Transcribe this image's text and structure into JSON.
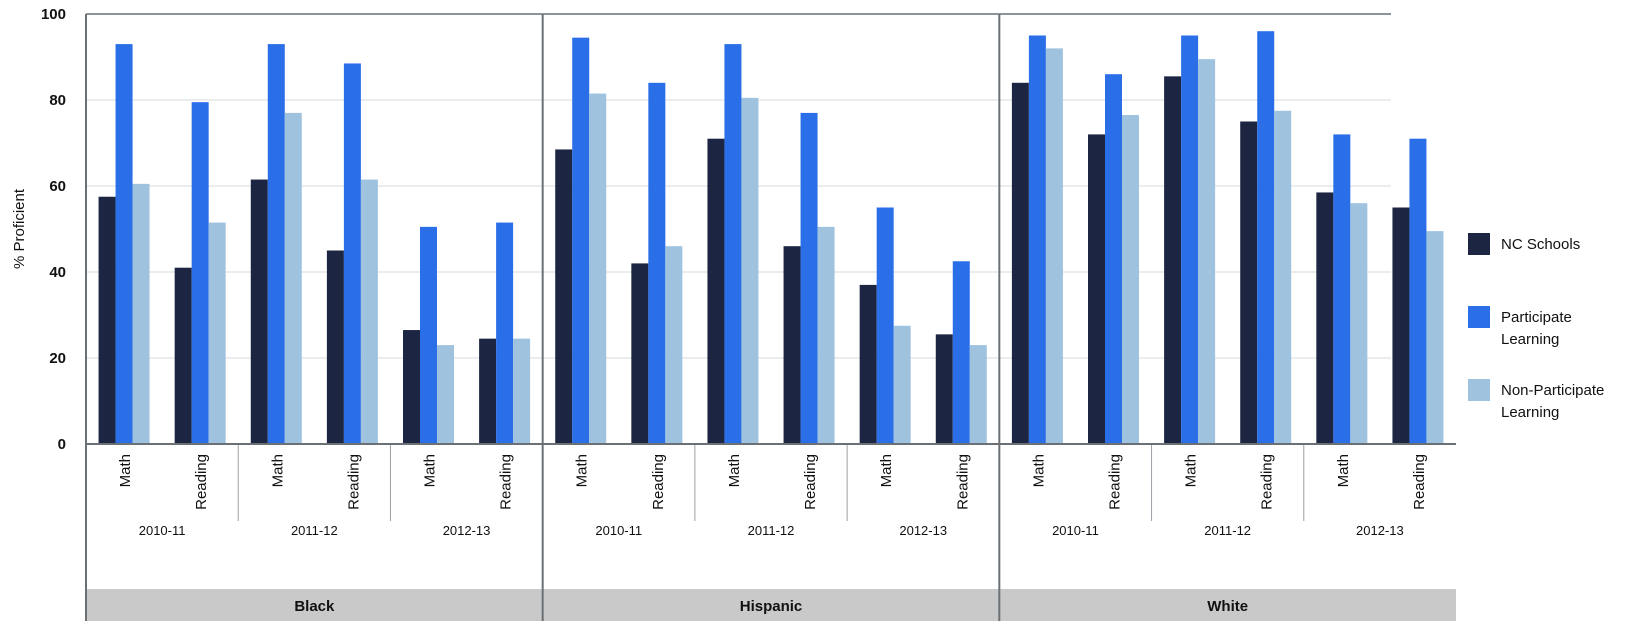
{
  "chart_data": {
    "type": "bar",
    "ylabel": "% Proficient",
    "ylim": [
      0,
      100
    ],
    "yticks": [
      0,
      20,
      40,
      60,
      80,
      100
    ],
    "grid": true,
    "legend_position": "right",
    "colors": {
      "NC Schools": "#1c2541",
      "Participate Learning": "#2a6ee8",
      "Non-Participate Learning": "#9fc2df"
    },
    "series_names": [
      "NC Schools",
      "Participate Learning",
      "Non-Participate Learning"
    ],
    "legend": [
      {
        "lines": [
          "NC Schools"
        ]
      },
      {
        "lines": [
          "Participate",
          "Learning"
        ]
      },
      {
        "lines": [
          "Non-Participate",
          "Learning"
        ]
      }
    ],
    "panels": [
      {
        "name": "Black",
        "years": [
          {
            "year": "2010-11",
            "groups": [
              {
                "subject": "Math",
                "values": [
                  57.5,
                  93,
                  60.5
                ]
              },
              {
                "subject": "Reading",
                "values": [
                  41,
                  79.5,
                  51.5
                ]
              }
            ]
          },
          {
            "year": "2011-12",
            "groups": [
              {
                "subject": "Math",
                "values": [
                  61.5,
                  93,
                  77
                ]
              },
              {
                "subject": "Reading",
                "values": [
                  45,
                  88.5,
                  61.5
                ]
              }
            ]
          },
          {
            "year": "2012-13",
            "groups": [
              {
                "subject": "Math",
                "values": [
                  26.5,
                  50.5,
                  23
                ]
              },
              {
                "subject": "Reading",
                "values": [
                  24.5,
                  51.5,
                  24.5
                ]
              }
            ]
          }
        ]
      },
      {
        "name": "Hispanic",
        "years": [
          {
            "year": "2010-11",
            "groups": [
              {
                "subject": "Math",
                "values": [
                  68.5,
                  94.5,
                  81.5
                ]
              },
              {
                "subject": "Reading",
                "values": [
                  42,
                  84,
                  46
                ]
              }
            ]
          },
          {
            "year": "2011-12",
            "groups": [
              {
                "subject": "Math",
                "values": [
                  71,
                  93,
                  80.5
                ]
              },
              {
                "subject": "Reading",
                "values": [
                  46,
                  77,
                  50.5
                ]
              }
            ]
          },
          {
            "year": "2012-13",
            "groups": [
              {
                "subject": "Math",
                "values": [
                  37,
                  55,
                  27.5
                ]
              },
              {
                "subject": "Reading",
                "values": [
                  25.5,
                  42.5,
                  23
                ]
              }
            ]
          }
        ]
      },
      {
        "name": "White",
        "years": [
          {
            "year": "2010-11",
            "groups": [
              {
                "subject": "Math",
                "values": [
                  84,
                  95,
                  92
                ]
              },
              {
                "subject": "Reading",
                "values": [
                  72,
                  86,
                  76.5
                ]
              }
            ]
          },
          {
            "year": "2011-12",
            "groups": [
              {
                "subject": "Math",
                "values": [
                  85.5,
                  95,
                  89.5
                ]
              },
              {
                "subject": "Reading",
                "values": [
                  75,
                  96,
                  77.5
                ]
              }
            ]
          },
          {
            "year": "2012-13",
            "groups": [
              {
                "subject": "Math",
                "values": [
                  58.5,
                  72,
                  56
                ]
              },
              {
                "subject": "Reading",
                "values": [
                  55,
                  71,
                  49.5
                ]
              }
            ]
          }
        ]
      }
    ]
  }
}
